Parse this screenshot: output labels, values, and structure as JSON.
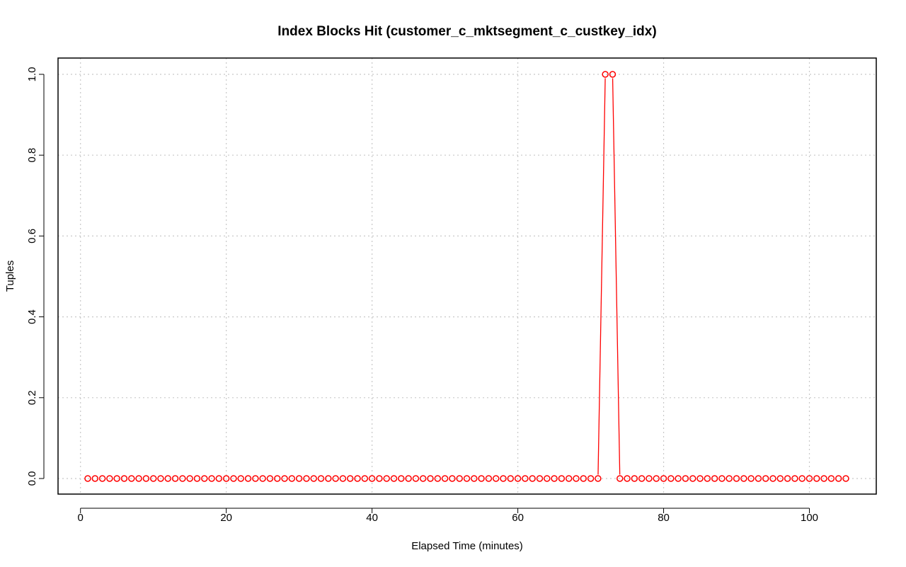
{
  "chart_data": {
    "type": "line",
    "title": "Index Blocks Hit (customer_c_mktsegment_c_custkey_idx)",
    "xlabel": "Elapsed Time (minutes)",
    "ylabel": "Tuples",
    "xlim": [
      0,
      108
    ],
    "ylim": [
      0,
      1
    ],
    "x_ticks": [
      0,
      20,
      40,
      60,
      80,
      100
    ],
    "x_tick_labels": [
      "0",
      "20",
      "40",
      "60",
      "80",
      "100"
    ],
    "y_ticks": [
      0,
      0.2,
      0.4,
      0.6,
      0.8,
      1.0
    ],
    "y_tick_labels": [
      "0.0",
      "0.2",
      "0.4",
      "0.6",
      "0.8",
      "1.0"
    ],
    "grid": true,
    "color": "#ff0000",
    "series": [
      {
        "x": [
          1,
          2,
          3,
          4,
          5,
          6,
          7,
          8,
          9,
          10,
          11,
          12,
          13,
          14,
          15,
          16,
          17,
          18,
          19,
          20,
          21,
          22,
          23,
          24,
          25,
          26,
          27,
          28,
          29,
          30,
          31,
          32,
          33,
          34,
          35,
          36,
          37,
          38,
          39,
          40,
          41,
          42,
          43,
          44,
          45,
          46,
          47,
          48,
          49,
          50,
          51,
          52,
          53,
          54,
          55,
          56,
          57,
          58,
          59,
          60,
          61,
          62,
          63,
          64,
          65,
          66,
          67,
          68,
          69,
          70,
          71,
          72,
          73,
          74,
          75,
          76,
          77,
          78,
          79,
          80,
          81,
          82,
          83,
          84,
          85,
          86,
          87,
          88,
          89,
          90,
          91,
          92,
          93,
          94,
          95,
          96,
          97,
          98,
          99,
          100,
          101,
          102,
          103,
          104,
          105
        ],
        "values": [
          0,
          0,
          0,
          0,
          0,
          0,
          0,
          0,
          0,
          0,
          0,
          0,
          0,
          0,
          0,
          0,
          0,
          0,
          0,
          0,
          0,
          0,
          0,
          0,
          0,
          0,
          0,
          0,
          0,
          0,
          0,
          0,
          0,
          0,
          0,
          0,
          0,
          0,
          0,
          0,
          0,
          0,
          0,
          0,
          0,
          0,
          0,
          0,
          0,
          0,
          0,
          0,
          0,
          0,
          0,
          0,
          0,
          0,
          0,
          0,
          0,
          0,
          0,
          0,
          0,
          0,
          0,
          0,
          0,
          0,
          0,
          1,
          1,
          0,
          0,
          0,
          0,
          0,
          0,
          0,
          0,
          0,
          0,
          0,
          0,
          0,
          0,
          0,
          0,
          0,
          0,
          0,
          0,
          0,
          0,
          0,
          0,
          0,
          0,
          0,
          0,
          0,
          0,
          0,
          0
        ]
      }
    ]
  }
}
